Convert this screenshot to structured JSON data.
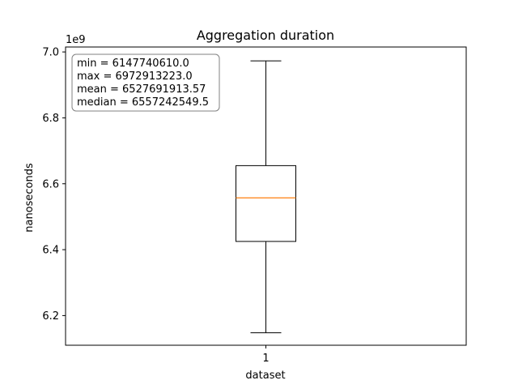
{
  "chart_data": {
    "type": "box",
    "title": "Aggregation duration",
    "xlabel": "dataset",
    "ylabel": "nanoseconds",
    "offset_label": "1e9",
    "categories": [
      "1"
    ],
    "ylim": [
      6.11,
      7.015
    ],
    "y_ticks": [
      {
        "value": 6.2,
        "label": "6.2"
      },
      {
        "value": 6.4,
        "label": "6.4"
      },
      {
        "value": 6.6,
        "label": "6.6"
      },
      {
        "value": 6.8,
        "label": "6.8"
      },
      {
        "value": 7.0,
        "label": "7.0"
      }
    ],
    "box": {
      "whisker_low": 6.14774061,
      "q1": 6.425,
      "median": 6.557242549,
      "q3": 6.655,
      "whisker_high": 6.972913223
    },
    "median_color": "#ff7f0e",
    "stats": [
      "min = 6147740610.0",
      "max = 6972913223.0",
      "mean = 6527691913.57",
      "median = 6557242549.5"
    ]
  }
}
